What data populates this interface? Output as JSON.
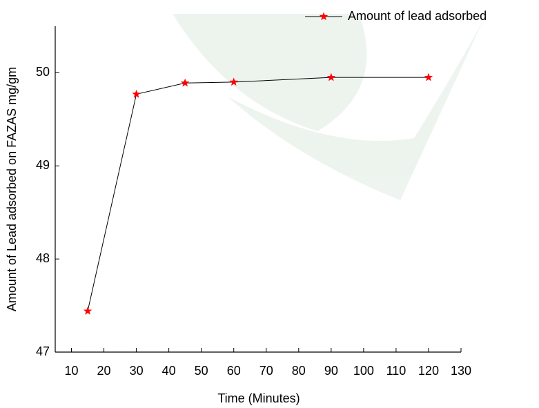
{
  "chart_data": {
    "type": "line",
    "x_label": "Time (Minutes)",
    "y_label": "Amount of Lead adsorbed on FAZAS mg/gm",
    "x": [
      15,
      30,
      45,
      60,
      90,
      120
    ],
    "series": [
      {
        "name": "Amount of lead adsorbed",
        "color": "#ff0000",
        "line_color": "#000000",
        "marker": "star",
        "values": [
          47.44,
          49.77,
          49.89,
          49.9,
          49.95,
          49.95
        ]
      }
    ],
    "xlim": [
      5,
      130
    ],
    "xticks": [
      10,
      20,
      30,
      40,
      50,
      60,
      70,
      80,
      90,
      100,
      110,
      120,
      130
    ],
    "ylim": [
      47,
      50.5
    ],
    "yticks": [
      47,
      48,
      49,
      50
    ],
    "legend": "top-right",
    "grid": false
  }
}
